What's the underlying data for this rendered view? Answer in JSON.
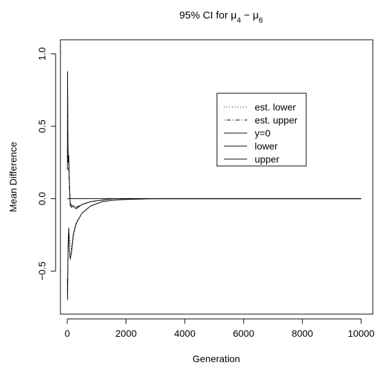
{
  "chart_data": {
    "type": "line",
    "title_prefix": "95% CI for ",
    "title_mu1": "μ",
    "title_sub1": "4",
    "title_minus": " − ",
    "title_mu2": "μ",
    "title_sub2": "6",
    "xlabel": "Generation",
    "ylabel": "Mean Difference",
    "xlim": [
      0,
      10000
    ],
    "ylim": [
      -0.75,
      1.05
    ],
    "x_ticks": [
      {
        "value": 0,
        "label": "0"
      },
      {
        "value": 2000,
        "label": "2000"
      },
      {
        "value": 4000,
        "label": "4000"
      },
      {
        "value": 6000,
        "label": "6000"
      },
      {
        "value": 8000,
        "label": "8000"
      },
      {
        "value": 10000,
        "label": "10000"
      }
    ],
    "y_ticks": [
      {
        "value": -0.5,
        "label": "−0.5"
      },
      {
        "value": 0.0,
        "label": "0.0"
      },
      {
        "value": 0.5,
        "label": "0.5"
      },
      {
        "value": 1.0,
        "label": "1.0"
      }
    ],
    "grid": false,
    "legend_position": "top-right",
    "series": [
      {
        "name": "est. lower",
        "style": "dotted",
        "x": [
          10,
          20,
          30,
          50,
          70,
          100,
          150,
          200,
          300,
          500,
          800,
          1200,
          1600,
          2000,
          3000,
          5000,
          10000
        ],
        "y": [
          -0.65,
          -0.5,
          -0.35,
          -0.28,
          -0.25,
          -0.3,
          -0.38,
          -0.28,
          -0.18,
          -0.1,
          -0.05,
          -0.02,
          -0.01,
          -0.005,
          0.0,
          0.0,
          0.0
        ]
      },
      {
        "name": "est. upper",
        "style": "dotdash",
        "x": [
          10,
          20,
          30,
          50,
          70,
          100,
          150,
          200,
          300,
          500,
          800,
          1200,
          1600,
          2000,
          3000,
          5000,
          10000
        ],
        "y": [
          0.85,
          0.4,
          0.3,
          0.2,
          0.1,
          -0.03,
          -0.05,
          -0.04,
          -0.06,
          -0.04,
          -0.02,
          -0.01,
          0.0,
          0.0,
          0.0,
          0.0,
          0.0
        ]
      },
      {
        "name": "y=0",
        "style": "solid",
        "x": [
          0,
          10000
        ],
        "y": [
          0.0,
          0.0
        ]
      },
      {
        "name": "lower",
        "style": "solid",
        "x": [
          5,
          10,
          20,
          30,
          50,
          70,
          100,
          150,
          200,
          300,
          500,
          800,
          1200,
          1600,
          2000,
          3000,
          5000,
          10000
        ],
        "y": [
          -0.55,
          -0.7,
          -0.45,
          -0.3,
          -0.2,
          -0.35,
          -0.42,
          -0.35,
          -0.25,
          -0.17,
          -0.1,
          -0.05,
          -0.02,
          -0.01,
          -0.005,
          0.0,
          0.0,
          0.0
        ]
      },
      {
        "name": "upper",
        "style": "solid",
        "x": [
          5,
          10,
          20,
          30,
          50,
          70,
          100,
          150,
          200,
          300,
          500,
          800,
          1200,
          1600,
          2000,
          3000,
          5000,
          10000
        ],
        "y": [
          0.2,
          0.88,
          0.45,
          0.25,
          0.3,
          0.12,
          -0.05,
          -0.06,
          -0.05,
          -0.07,
          -0.04,
          -0.02,
          -0.01,
          0.0,
          0.0,
          0.0,
          0.0,
          0.0
        ]
      }
    ]
  }
}
